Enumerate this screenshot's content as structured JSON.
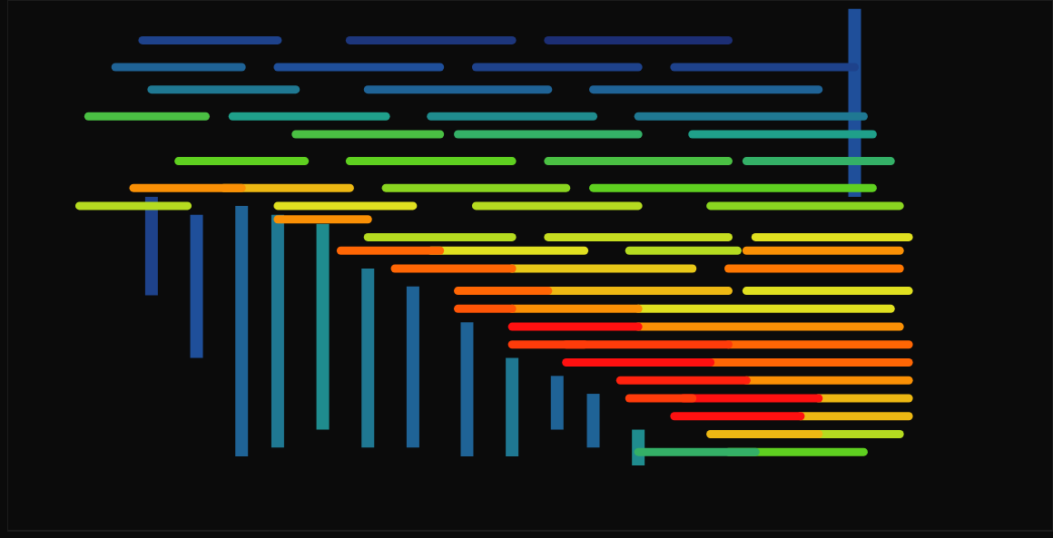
{
  "chart_data": {
    "type": "spectrogram",
    "xlim": [
      0,
      1160
    ],
    "ylim": [
      0,
      593
    ],
    "zlim": [
      0,
      1
    ],
    "tick_labels": false,
    "grid": false,
    "ridges": [
      {
        "x": 160,
        "y": [
          263,
          373
        ],
        "intensity": 0.2
      },
      {
        "x": 210,
        "y": [
          193,
          353
        ],
        "intensity": 0.25
      },
      {
        "x": 260,
        "y": [
          83,
          363
        ],
        "intensity": 0.3
      },
      {
        "x": 300,
        "y": [
          93,
          353
        ],
        "intensity": 0.35
      },
      {
        "x": 350,
        "y": [
          113,
          343
        ],
        "intensity": 0.4
      },
      {
        "x": 400,
        "y": [
          93,
          293
        ],
        "intensity": 0.35
      },
      {
        "x": 450,
        "y": [
          93,
          273
        ],
        "intensity": 0.3
      },
      {
        "x": 510,
        "y": [
          83,
          233
        ],
        "intensity": 0.3
      },
      {
        "x": 560,
        "y": [
          83,
          193
        ],
        "intensity": 0.35
      },
      {
        "x": 610,
        "y": [
          113,
          173
        ],
        "intensity": 0.3
      },
      {
        "x": 650,
        "y": [
          93,
          153
        ],
        "intensity": 0.3
      },
      {
        "x": 700,
        "y": [
          73,
          113
        ],
        "intensity": 0.4
      },
      {
        "x": 940,
        "y": [
          373,
          583
        ],
        "intensity": 0.25
      }
    ],
    "streaks": [
      {
        "x": [
          150,
          300
        ],
        "y": 548,
        "intensity": 0.2
      },
      {
        "x": [
          380,
          560
        ],
        "y": 548,
        "intensity": 0.15
      },
      {
        "x": [
          600,
          800
        ],
        "y": 548,
        "intensity": 0.12
      },
      {
        "x": [
          120,
          260
        ],
        "y": 518,
        "intensity": 0.3
      },
      {
        "x": [
          300,
          480
        ],
        "y": 518,
        "intensity": 0.25
      },
      {
        "x": [
          520,
          700
        ],
        "y": 518,
        "intensity": 0.2
      },
      {
        "x": [
          740,
          940
        ],
        "y": 518,
        "intensity": 0.2
      },
      {
        "x": [
          160,
          320
        ],
        "y": 493,
        "intensity": 0.35
      },
      {
        "x": [
          400,
          600
        ],
        "y": 493,
        "intensity": 0.3
      },
      {
        "x": [
          650,
          900
        ],
        "y": 493,
        "intensity": 0.3
      },
      {
        "x": [
          90,
          220
        ],
        "y": 463,
        "intensity": 0.55
      },
      {
        "x": [
          250,
          420
        ],
        "y": 463,
        "intensity": 0.45
      },
      {
        "x": [
          470,
          650
        ],
        "y": 463,
        "intensity": 0.4
      },
      {
        "x": [
          700,
          950
        ],
        "y": 463,
        "intensity": 0.35
      },
      {
        "x": [
          320,
          480
        ],
        "y": 443,
        "intensity": 0.55
      },
      {
        "x": [
          500,
          700
        ],
        "y": 443,
        "intensity": 0.5
      },
      {
        "x": [
          760,
          960
        ],
        "y": 443,
        "intensity": 0.45
      },
      {
        "x": [
          190,
          330
        ],
        "y": 413,
        "intensity": 0.6
      },
      {
        "x": [
          380,
          560
        ],
        "y": 413,
        "intensity": 0.6
      },
      {
        "x": [
          600,
          800
        ],
        "y": 413,
        "intensity": 0.55
      },
      {
        "x": [
          820,
          980
        ],
        "y": 413,
        "intensity": 0.5
      },
      {
        "x": [
          140,
          260
        ],
        "y": 383,
        "intensity": 0.85
      },
      {
        "x": [
          240,
          380
        ],
        "y": 383,
        "intensity": 0.8
      },
      {
        "x": [
          420,
          620
        ],
        "y": 383,
        "intensity": 0.65
      },
      {
        "x": [
          650,
          960
        ],
        "y": 383,
        "intensity": 0.6
      },
      {
        "x": [
          80,
          200
        ],
        "y": 363,
        "intensity": 0.7
      },
      {
        "x": [
          300,
          450
        ],
        "y": 363,
        "intensity": 0.75
      },
      {
        "x": [
          520,
          700
        ],
        "y": 363,
        "intensity": 0.7
      },
      {
        "x": [
          780,
          990
        ],
        "y": 363,
        "intensity": 0.65
      },
      {
        "x": [
          300,
          400
        ],
        "y": 348,
        "intensity": 0.85
      },
      {
        "x": [
          400,
          560
        ],
        "y": 328,
        "intensity": 0.7
      },
      {
        "x": [
          600,
          800
        ],
        "y": 328,
        "intensity": 0.72
      },
      {
        "x": [
          830,
          1000
        ],
        "y": 328,
        "intensity": 0.75
      },
      {
        "x": [
          370,
          480
        ],
        "y": 313,
        "intensity": 0.9
      },
      {
        "x": [
          470,
          640
        ],
        "y": 313,
        "intensity": 0.75
      },
      {
        "x": [
          690,
          810
        ],
        "y": 313,
        "intensity": 0.7
      },
      {
        "x": [
          820,
          990
        ],
        "y": 313,
        "intensity": 0.85
      },
      {
        "x": [
          430,
          560
        ],
        "y": 293,
        "intensity": 0.9
      },
      {
        "x": [
          560,
          760
        ],
        "y": 293,
        "intensity": 0.78
      },
      {
        "x": [
          800,
          990
        ],
        "y": 293,
        "intensity": 0.88
      },
      {
        "x": [
          500,
          600
        ],
        "y": 268,
        "intensity": 0.9
      },
      {
        "x": [
          600,
          800
        ],
        "y": 268,
        "intensity": 0.8
      },
      {
        "x": [
          820,
          1000
        ],
        "y": 268,
        "intensity": 0.75
      },
      {
        "x": [
          500,
          560
        ],
        "y": 248,
        "intensity": 0.92
      },
      {
        "x": [
          560,
          700
        ],
        "y": 248,
        "intensity": 0.85
      },
      {
        "x": [
          700,
          980
        ],
        "y": 248,
        "intensity": 0.75
      },
      {
        "x": [
          560,
          700
        ],
        "y": 228,
        "intensity": 1.0
      },
      {
        "x": [
          700,
          990
        ],
        "y": 228,
        "intensity": 0.85
      },
      {
        "x": [
          560,
          640
        ],
        "y": 208,
        "intensity": 0.95
      },
      {
        "x": [
          620,
          800
        ],
        "y": 208,
        "intensity": 0.95
      },
      {
        "x": [
          800,
          1000
        ],
        "y": 208,
        "intensity": 0.9
      },
      {
        "x": [
          620,
          780
        ],
        "y": 188,
        "intensity": 1.0
      },
      {
        "x": [
          780,
          1000
        ],
        "y": 188,
        "intensity": 0.9
      },
      {
        "x": [
          680,
          820
        ],
        "y": 168,
        "intensity": 0.98
      },
      {
        "x": [
          820,
          1000
        ],
        "y": 168,
        "intensity": 0.85
      },
      {
        "x": [
          690,
          760
        ],
        "y": 148,
        "intensity": 0.95
      },
      {
        "x": [
          750,
          900
        ],
        "y": 148,
        "intensity": 1.0
      },
      {
        "x": [
          900,
          1000
        ],
        "y": 148,
        "intensity": 0.8
      },
      {
        "x": [
          740,
          880
        ],
        "y": 128,
        "intensity": 1.0
      },
      {
        "x": [
          880,
          1000
        ],
        "y": 128,
        "intensity": 0.8
      },
      {
        "x": [
          780,
          900
        ],
        "y": 108,
        "intensity": 0.8
      },
      {
        "x": [
          900,
          990
        ],
        "y": 108,
        "intensity": 0.7
      },
      {
        "x": [
          700,
          830
        ],
        "y": 88,
        "intensity": 0.5
      },
      {
        "x": [
          800,
          950
        ],
        "y": 88,
        "intensity": 0.6
      }
    ]
  }
}
